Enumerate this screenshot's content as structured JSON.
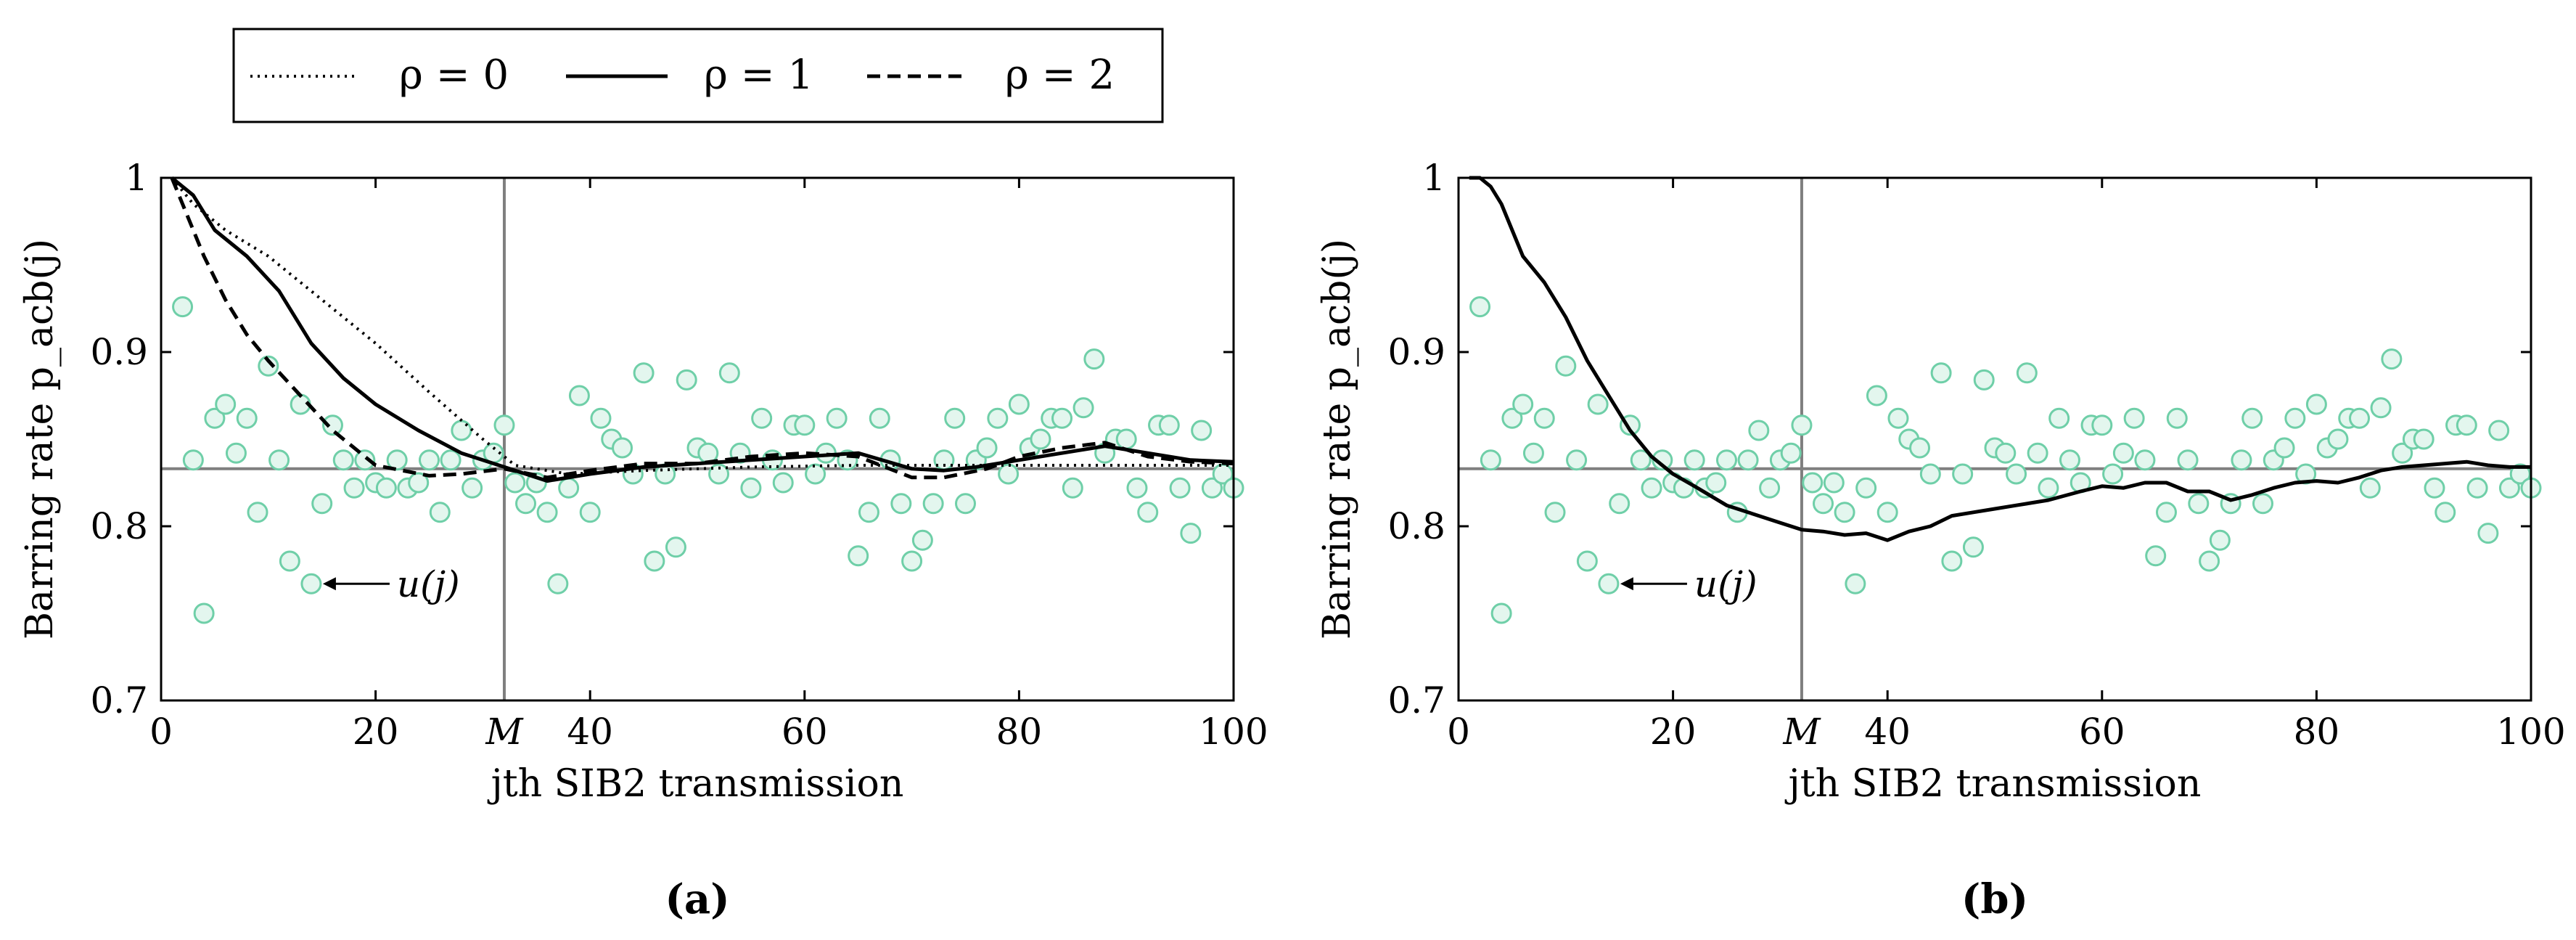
{
  "legend": {
    "entries": [
      {
        "label": "ρ = 0",
        "style": "dotted"
      },
      {
        "label": "ρ = 1",
        "style": "solid"
      },
      {
        "label": "ρ = 2",
        "style": "dashed"
      }
    ]
  },
  "colors": {
    "line": "#000000",
    "marker_stroke": "#6fcfa8",
    "marker_fill": "#e3f6ee",
    "reference": "#7f7f7f"
  },
  "chart_data": [
    {
      "type": "line",
      "panel": "a",
      "caption": "(a)",
      "xlabel": "jth SIB2 transmission",
      "ylabel": "Barring rate p_acb(j)",
      "xlim": [
        0,
        100
      ],
      "ylim": [
        0.7,
        1.0
      ],
      "xticks": [
        0,
        20,
        40,
        60,
        80,
        100
      ],
      "yticks": [
        0.7,
        0.8,
        0.9,
        1.0
      ],
      "ytick_labels": [
        "0.7",
        "0.8",
        "0.9",
        "1"
      ],
      "vertical_marker": {
        "label": "M",
        "x": 32
      },
      "reference_y": 0.833,
      "annotation": {
        "text": "u(j)",
        "x": 14,
        "y": 0.767
      },
      "series": [
        {
          "name": "ρ = 0",
          "style": "dotted",
          "x": [
            1,
            3,
            6,
            10,
            15,
            20,
            25,
            30,
            33,
            38,
            45,
            55,
            65,
            72,
            80,
            90,
            100
          ],
          "y": [
            1.0,
            0.985,
            0.97,
            0.955,
            0.93,
            0.905,
            0.877,
            0.85,
            0.835,
            0.83,
            0.832,
            0.834,
            0.835,
            0.835,
            0.835,
            0.835,
            0.835
          ]
        },
        {
          "name": "ρ = 1",
          "style": "solid",
          "x": [
            1,
            3,
            5,
            8,
            11,
            14,
            17,
            20,
            24,
            28,
            32,
            36,
            40,
            45,
            50,
            55,
            60,
            65,
            70,
            73,
            76,
            80,
            84,
            88,
            92,
            96,
            100
          ],
          "y": [
            1.0,
            0.99,
            0.97,
            0.955,
            0.935,
            0.905,
            0.885,
            0.87,
            0.855,
            0.842,
            0.834,
            0.826,
            0.83,
            0.834,
            0.836,
            0.838,
            0.84,
            0.842,
            0.833,
            0.832,
            0.834,
            0.838,
            0.842,
            0.846,
            0.842,
            0.838,
            0.837
          ]
        },
        {
          "name": "ρ = 2",
          "style": "dashed",
          "x": [
            1,
            3,
            4,
            6,
            8,
            10,
            13,
            16,
            20,
            25,
            28,
            32,
            36,
            40,
            45,
            50,
            55,
            60,
            65,
            70,
            73,
            77,
            80,
            84,
            88,
            92,
            96,
            100
          ],
          "y": [
            1.0,
            0.97,
            0.955,
            0.93,
            0.91,
            0.895,
            0.875,
            0.855,
            0.835,
            0.829,
            0.83,
            0.833,
            0.828,
            0.832,
            0.836,
            0.836,
            0.84,
            0.842,
            0.84,
            0.828,
            0.828,
            0.833,
            0.84,
            0.845,
            0.848,
            0.84,
            0.837,
            0.836
          ]
        }
      ],
      "scatter": {
        "name": "u(j)",
        "x": [
          2,
          3,
          4,
          5,
          6,
          7,
          8,
          9,
          10,
          11,
          12,
          13,
          14,
          15,
          16,
          17,
          18,
          19,
          20,
          21,
          22,
          23,
          24,
          25,
          26,
          27,
          28,
          29,
          30,
          31,
          32,
          33,
          34,
          35,
          36,
          37,
          38,
          39,
          40,
          41,
          42,
          43,
          44,
          45,
          46,
          47,
          48,
          49,
          50,
          51,
          52,
          53,
          54,
          55,
          56,
          57,
          58,
          59,
          60,
          61,
          62,
          63,
          64,
          65,
          66,
          67,
          68,
          69,
          70,
          71,
          72,
          73,
          74,
          75,
          76,
          77,
          78,
          79,
          80,
          81,
          82,
          83,
          84,
          85,
          86,
          87,
          88,
          89,
          90,
          91,
          92,
          93,
          94,
          95,
          96,
          97,
          98,
          99,
          100
        ],
        "y": [
          0.926,
          0.838,
          0.75,
          0.862,
          0.87,
          0.842,
          0.862,
          0.808,
          0.892,
          0.838,
          0.78,
          0.87,
          0.767,
          0.813,
          0.858,
          0.838,
          0.822,
          0.838,
          0.825,
          0.822,
          0.838,
          0.822,
          0.825,
          0.838,
          0.808,
          0.838,
          0.855,
          0.822,
          0.838,
          0.842,
          0.858,
          0.825,
          0.813,
          0.825,
          0.808,
          0.767,
          0.822,
          0.875,
          0.808,
          0.862,
          0.85,
          0.845,
          0.83,
          0.888,
          0.78,
          0.83,
          0.788,
          0.884,
          0.845,
          0.842,
          0.83,
          0.888,
          0.842,
          0.822,
          0.862,
          0.838,
          0.825,
          0.858,
          0.858,
          0.83,
          0.842,
          0.862,
          0.838,
          0.783,
          0.808,
          0.862,
          0.838,
          0.813,
          0.78,
          0.792,
          0.813,
          0.838,
          0.862,
          0.813,
          0.838,
          0.845,
          0.862,
          0.83,
          0.87,
          0.845,
          0.85,
          0.862,
          0.862,
          0.822,
          0.868,
          0.896,
          0.842,
          0.85,
          0.85,
          0.822,
          0.808,
          0.858,
          0.858,
          0.822,
          0.796,
          0.855,
          0.822,
          0.83,
          0.822
        ]
      }
    },
    {
      "type": "line",
      "panel": "b",
      "caption": "(b)",
      "xlabel": "jth SIB2 transmission",
      "ylabel": "Barring rate p_acb(j)",
      "xlim": [
        0,
        100
      ],
      "ylim": [
        0.7,
        1.0
      ],
      "xticks": [
        0,
        20,
        40,
        60,
        80,
        100
      ],
      "yticks": [
        0.7,
        0.8,
        0.9,
        1.0
      ],
      "ytick_labels": [
        "0.7",
        "0.8",
        "0.9",
        "1"
      ],
      "vertical_marker": {
        "label": "M",
        "x": 32
      },
      "reference_y": 0.833,
      "annotation": {
        "text": "u(j)",
        "x": 14,
        "y": 0.767
      },
      "series": [
        {
          "name": "solid",
          "style": "solid",
          "x": [
            1,
            2,
            3,
            4,
            5,
            6,
            8,
            10,
            12,
            14,
            16,
            18,
            20,
            22,
            25,
            28,
            30,
            32,
            34,
            36,
            38,
            40,
            42,
            44,
            46,
            48,
            50,
            52,
            55,
            58,
            60,
            62,
            64,
            66,
            68,
            70,
            72,
            74,
            76,
            78,
            80,
            82,
            84,
            86,
            88,
            90,
            92,
            94,
            96,
            98,
            100
          ],
          "y": [
            1.0,
            1.0,
            0.995,
            0.985,
            0.97,
            0.955,
            0.94,
            0.92,
            0.895,
            0.875,
            0.855,
            0.84,
            0.83,
            0.823,
            0.812,
            0.806,
            0.802,
            0.798,
            0.797,
            0.795,
            0.796,
            0.792,
            0.797,
            0.8,
            0.806,
            0.808,
            0.81,
            0.812,
            0.815,
            0.82,
            0.823,
            0.822,
            0.825,
            0.825,
            0.82,
            0.82,
            0.815,
            0.818,
            0.822,
            0.825,
            0.826,
            0.825,
            0.828,
            0.832,
            0.834,
            0.835,
            0.836,
            0.837,
            0.835,
            0.834,
            0.834
          ]
        }
      ],
      "scatter": {
        "name": "u(j)",
        "x": [
          2,
          3,
          4,
          5,
          6,
          7,
          8,
          9,
          10,
          11,
          12,
          13,
          14,
          15,
          16,
          17,
          18,
          19,
          20,
          21,
          22,
          23,
          24,
          25,
          26,
          27,
          28,
          29,
          30,
          31,
          32,
          33,
          34,
          35,
          36,
          37,
          38,
          39,
          40,
          41,
          42,
          43,
          44,
          45,
          46,
          47,
          48,
          49,
          50,
          51,
          52,
          53,
          54,
          55,
          56,
          57,
          58,
          59,
          60,
          61,
          62,
          63,
          64,
          65,
          66,
          67,
          68,
          69,
          70,
          71,
          72,
          73,
          74,
          75,
          76,
          77,
          78,
          79,
          80,
          81,
          82,
          83,
          84,
          85,
          86,
          87,
          88,
          89,
          90,
          91,
          92,
          93,
          94,
          95,
          96,
          97,
          98,
          99,
          100
        ],
        "y": [
          0.926,
          0.838,
          0.75,
          0.862,
          0.87,
          0.842,
          0.862,
          0.808,
          0.892,
          0.838,
          0.78,
          0.87,
          0.767,
          0.813,
          0.858,
          0.838,
          0.822,
          0.838,
          0.825,
          0.822,
          0.838,
          0.822,
          0.825,
          0.838,
          0.808,
          0.838,
          0.855,
          0.822,
          0.838,
          0.842,
          0.858,
          0.825,
          0.813,
          0.825,
          0.808,
          0.767,
          0.822,
          0.875,
          0.808,
          0.862,
          0.85,
          0.845,
          0.83,
          0.888,
          0.78,
          0.83,
          0.788,
          0.884,
          0.845,
          0.842,
          0.83,
          0.888,
          0.842,
          0.822,
          0.862,
          0.838,
          0.825,
          0.858,
          0.858,
          0.83,
          0.842,
          0.862,
          0.838,
          0.783,
          0.808,
          0.862,
          0.838,
          0.813,
          0.78,
          0.792,
          0.813,
          0.838,
          0.862,
          0.813,
          0.838,
          0.845,
          0.862,
          0.83,
          0.87,
          0.845,
          0.85,
          0.862,
          0.862,
          0.822,
          0.868,
          0.896,
          0.842,
          0.85,
          0.85,
          0.822,
          0.808,
          0.858,
          0.858,
          0.822,
          0.796,
          0.855,
          0.822,
          0.83,
          0.822
        ]
      }
    }
  ]
}
